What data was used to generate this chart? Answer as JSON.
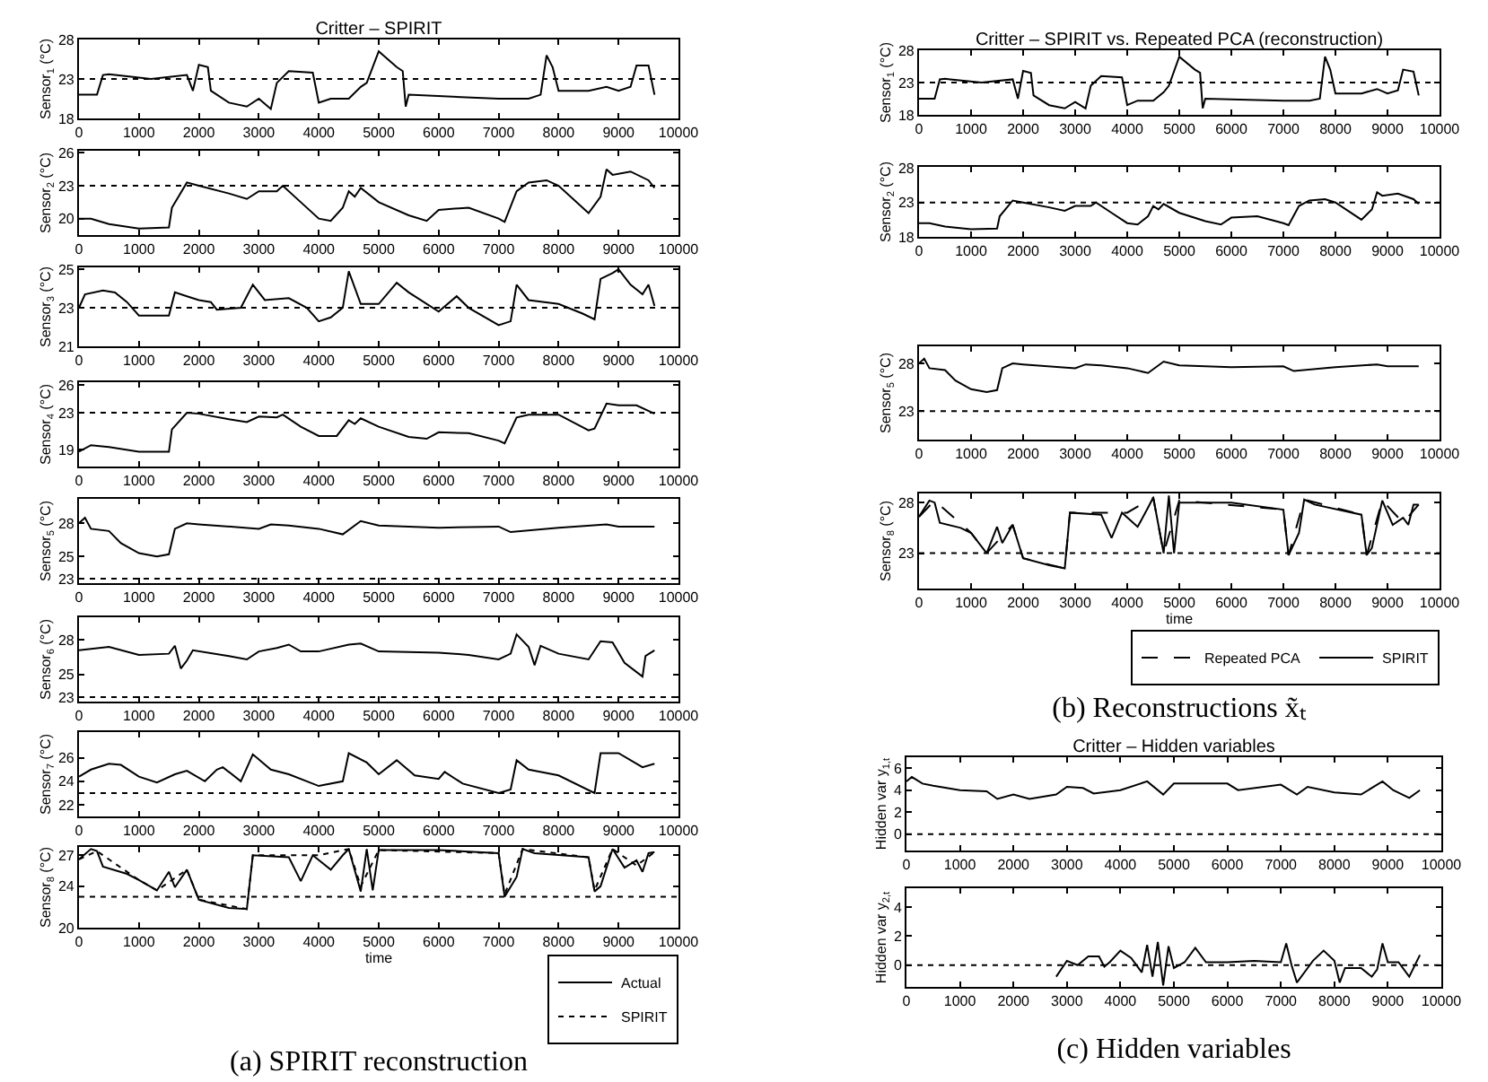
{
  "chart_data": [
    {
      "type": "line",
      "title": "Critter – SPIRIT",
      "ylabel": "Sensor$_{1}$ (°C)",
      "xlim": [
        0,
        10000
      ],
      "xticks": [
        0,
        1000,
        2000,
        3000,
        4000,
        5000,
        6000,
        7000,
        8000,
        9000,
        10000
      ],
      "ylim": [
        18,
        28
      ],
      "yticks": [
        18,
        23,
        28
      ],
      "legend": false,
      "ref_lines": [
        {
          "axis": "y",
          "value": 23,
          "color": "#000000",
          "line_style": "dotted"
        }
      ],
      "series": [
        {
          "color": "#000000",
          "line_style": "solid",
          "x": [
            0,
            300,
            400,
            500,
            600,
            1200,
            1800,
            1900,
            2000,
            2150,
            2200,
            2500,
            2800,
            3000,
            3200,
            3300,
            3500,
            3900,
            4000,
            4200,
            4500,
            4700,
            4800,
            5000,
            5300,
            5400,
            5450,
            5500,
            7000,
            7500,
            7700,
            7800,
            7900,
            8000,
            8500,
            8800,
            9000,
            9200,
            9300,
            9500,
            9600
          ],
          "values": [
            21,
            21,
            23.5,
            23.6,
            23.5,
            23,
            23.5,
            21.5,
            24.8,
            24.5,
            21.5,
            20,
            19.5,
            20.5,
            19.2,
            22.5,
            24,
            23.8,
            20,
            20.5,
            20.5,
            22,
            22.5,
            26.5,
            24.5,
            24,
            19.5,
            21,
            20.5,
            20.5,
            21,
            26,
            24.5,
            21.5,
            21.5,
            22,
            21.5,
            22,
            24.7,
            24.7,
            21
          ]
        }
      ]
    },
    {
      "type": "line",
      "ylabel": "Sensor$_{2}$ (°C)",
      "xlim": [
        0,
        10000
      ],
      "xticks": [
        0,
        1000,
        2000,
        3000,
        4000,
        5000,
        6000,
        7000,
        8000,
        9000,
        10000
      ],
      "ylim": [
        18.5,
        26.2
      ],
      "yticks": [
        20,
        23,
        26
      ],
      "legend": false,
      "ref_lines": [
        {
          "axis": "y",
          "value": 23,
          "color": "#000000",
          "line_style": "dotted"
        }
      ],
      "series": [
        {
          "color": "#000000",
          "line_style": "solid",
          "x": [
            0,
            200,
            500,
            1000,
            1500,
            1550,
            1800,
            2000,
            2500,
            2800,
            3000,
            3300,
            3400,
            3700,
            4000,
            4200,
            4400,
            4500,
            4600,
            4700,
            5000,
            5500,
            5800,
            6000,
            6500,
            7000,
            7100,
            7300,
            7500,
            7800,
            8000,
            8500,
            8700,
            8800,
            8900,
            9200,
            9500,
            9600
          ],
          "values": [
            20,
            20,
            19.5,
            19.1,
            19.2,
            21,
            23.3,
            23,
            22.3,
            21.8,
            22.5,
            22.5,
            23,
            21.5,
            20,
            19.8,
            21,
            22.5,
            22,
            22.8,
            21.5,
            20.3,
            19.8,
            20.8,
            21,
            20,
            19.7,
            22.5,
            23.3,
            23.5,
            23,
            20.5,
            22,
            24.5,
            24,
            24.3,
            23.5,
            22.8
          ]
        }
      ]
    },
    {
      "type": "line",
      "ylabel": "Sensor$_{3}$ (°C)",
      "xlim": [
        0,
        10000
      ],
      "xticks": [
        0,
        1000,
        2000,
        3000,
        4000,
        5000,
        6000,
        7000,
        8000,
        9000,
        10000
      ],
      "ylim": [
        21,
        25.1
      ],
      "yticks": [
        21,
        23,
        25
      ],
      "legend": false,
      "ref_lines": [
        {
          "axis": "y",
          "value": 23,
          "color": "#000000",
          "line_style": "dotted"
        }
      ],
      "series": [
        {
          "color": "#000000",
          "line_style": "solid",
          "x": [
            0,
            100,
            400,
            600,
            800,
            1000,
            1500,
            1600,
            1800,
            2000,
            2200,
            2300,
            2700,
            2900,
            3100,
            3500,
            3800,
            4000,
            4200,
            4400,
            4500,
            4700,
            5000,
            5300,
            5500,
            6000,
            6300,
            6500,
            7000,
            7200,
            7300,
            7500,
            8000,
            8400,
            8600,
            8700,
            8900,
            9000,
            9200,
            9400,
            9500,
            9600
          ],
          "values": [
            23,
            23.7,
            23.9,
            23.8,
            23.3,
            22.6,
            22.6,
            23.8,
            23.6,
            23.4,
            23.3,
            22.9,
            23,
            24.2,
            23.4,
            23.5,
            23,
            22.3,
            22.5,
            23,
            24.9,
            23.2,
            23.2,
            24.3,
            23.8,
            22.8,
            23.6,
            23,
            22.1,
            22.3,
            24.2,
            23.4,
            23.2,
            22.7,
            22.4,
            24.5,
            24.8,
            25,
            24.2,
            23.7,
            24.2,
            23.1
          ]
        }
      ]
    },
    {
      "type": "line",
      "ylabel": "Sensor$_{4}$ (°C)",
      "xlim": [
        0,
        10000
      ],
      "xticks": [
        0,
        1000,
        2000,
        3000,
        4000,
        5000,
        6000,
        7000,
        8000,
        9000,
        10000
      ],
      "ylim": [
        17.2,
        26.3
      ],
      "yticks": [
        19,
        23,
        26
      ],
      "legend": false,
      "ref_lines": [
        {
          "axis": "y",
          "value": 23,
          "color": "#000000",
          "line_style": "dotted"
        }
      ],
      "series": [
        {
          "color": "#000000",
          "line_style": "solid",
          "x": [
            0,
            200,
            500,
            1000,
            1500,
            1550,
            1800,
            2000,
            2500,
            2800,
            3000,
            3300,
            3400,
            3700,
            4000,
            4300,
            4500,
            4600,
            4700,
            5000,
            5500,
            5800,
            6000,
            6500,
            7000,
            7100,
            7300,
            7500,
            8000,
            8500,
            8600,
            8800,
            9000,
            9300,
            9600
          ],
          "values": [
            18.8,
            19.5,
            19.3,
            18.8,
            18.8,
            21.2,
            23,
            22.9,
            22.3,
            22,
            22.6,
            22.5,
            22.8,
            21.5,
            20.5,
            20.5,
            22.2,
            21.8,
            22.4,
            21.5,
            20.4,
            20.2,
            20.9,
            20.8,
            20,
            19.7,
            22.5,
            22.8,
            22.8,
            21.1,
            21.3,
            24,
            23.8,
            23.8,
            22.9
          ]
        }
      ]
    },
    {
      "type": "line",
      "ylabel": "Sensor$_{5}$ (°C)",
      "xlim": [
        0,
        10000
      ],
      "xticks": [
        0,
        1000,
        2000,
        3000,
        4000,
        5000,
        6000,
        7000,
        8000,
        9000,
        10000
      ],
      "ylim": [
        22.6,
        30.2
      ],
      "yticks": [
        23,
        25,
        28
      ],
      "legend": false,
      "ref_lines": [
        {
          "axis": "y",
          "value": 23,
          "color": "#000000",
          "line_style": "dotted"
        }
      ],
      "series": [
        {
          "color": "#000000",
          "line_style": "solid",
          "x": [
            0,
            100,
            200,
            500,
            700,
            1000,
            1300,
            1500,
            1600,
            1800,
            2000,
            3000,
            3200,
            3500,
            4000,
            4400,
            4700,
            5000,
            6000,
            7000,
            7200,
            8000,
            8800,
            9000,
            9600
          ],
          "values": [
            28,
            28.5,
            27.5,
            27.3,
            26.2,
            25.3,
            25,
            25.2,
            27.5,
            28,
            27.9,
            27.5,
            27.9,
            27.8,
            27.5,
            27,
            28.2,
            27.8,
            27.6,
            27.7,
            27.2,
            27.6,
            27.9,
            27.7,
            27.7
          ]
        }
      ]
    },
    {
      "type": "line",
      "ylabel": "Sensor$_{6}$ (°C)",
      "xlim": [
        0,
        10000
      ],
      "xticks": [
        0,
        1000,
        2000,
        3000,
        4000,
        5000,
        6000,
        7000,
        8000,
        9000,
        10000
      ],
      "ylim": [
        22.6,
        30
      ],
      "yticks": [
        23,
        25,
        28
      ],
      "legend": false,
      "ref_lines": [
        {
          "axis": "y",
          "value": 23,
          "color": "#000000",
          "line_style": "dotted"
        }
      ],
      "series": [
        {
          "color": "#000000",
          "line_style": "solid",
          "x": [
            0,
            500,
            1000,
            1500,
            1600,
            1700,
            1800,
            1900,
            2500,
            2800,
            3000,
            3300,
            3500,
            3700,
            4000,
            4500,
            4700,
            5000,
            6000,
            6500,
            7000,
            7200,
            7300,
            7500,
            7600,
            7700,
            8000,
            8500,
            8700,
            8900,
            9100,
            9400,
            9450,
            9600
          ],
          "values": [
            27.1,
            27.4,
            26.7,
            26.8,
            27.5,
            25.5,
            26.2,
            27.1,
            26.6,
            26.3,
            27,
            27.3,
            27.6,
            27,
            27,
            27.6,
            27.7,
            27,
            26.9,
            26.7,
            26.3,
            26.8,
            28.5,
            27.4,
            25.8,
            27.5,
            26.8,
            26.3,
            27.9,
            27.8,
            26,
            24.8,
            26.6,
            27.1
          ]
        }
      ]
    },
    {
      "type": "line",
      "ylabel": "Sensor$_{7}$ (°C)",
      "xlim": [
        0,
        10000
      ],
      "xticks": [
        0,
        1000,
        2000,
        3000,
        4000,
        5000,
        6000,
        7000,
        8000,
        9000,
        10000
      ],
      "ylim": [
        21,
        28.2
      ],
      "yticks": [
        22,
        24,
        26
      ],
      "legend": false,
      "ref_lines": [
        {
          "axis": "y",
          "value": 23,
          "color": "#000000",
          "line_style": "dotted"
        }
      ],
      "series": [
        {
          "color": "#000000",
          "line_style": "solid",
          "x": [
            0,
            200,
            500,
            700,
            1000,
            1300,
            1600,
            1800,
            2100,
            2300,
            2400,
            2700,
            2900,
            3200,
            3500,
            4000,
            4400,
            4500,
            4800,
            5000,
            5300,
            5600,
            6000,
            6100,
            6400,
            7000,
            7200,
            7300,
            7500,
            8000,
            8600,
            8700,
            9000,
            9400,
            9600
          ],
          "values": [
            24.4,
            25,
            25.5,
            25.4,
            24.4,
            23.9,
            24.6,
            24.9,
            24,
            25,
            25.2,
            24,
            26.3,
            25,
            24.6,
            23.6,
            24,
            26.4,
            25.6,
            24.6,
            25.8,
            24.5,
            24.2,
            24.8,
            23.8,
            23,
            23.3,
            25.8,
            25,
            24.5,
            23,
            26.4,
            26.4,
            25.2,
            25.5
          ]
        }
      ]
    },
    {
      "type": "line",
      "ylabel": "Sensor$_{8}$ (°C)",
      "xlabel": "time",
      "xlim": [
        0,
        10000
      ],
      "xticks": [
        0,
        1000,
        2000,
        3000,
        4000,
        5000,
        6000,
        7000,
        8000,
        9000,
        10000
      ],
      "ylim": [
        20,
        27.8
      ],
      "yticks": [
        20,
        24,
        27
      ],
      "legend": "bottom right",
      "ref_lines": [
        {
          "axis": "y",
          "value": 23,
          "color": "#000000",
          "line_style": "dotted"
        }
      ],
      "annotations": [
        "(a) SPIRIT reconstruction"
      ],
      "series": [
        {
          "name": "Actual",
          "color": "#000000",
          "line_style": "solid",
          "x": [
            0,
            200,
            300,
            400,
            800,
            1000,
            1300,
            1500,
            1600,
            1800,
            2000,
            2500,
            2800,
            2900,
            3500,
            3700,
            3900,
            4200,
            4400,
            4500,
            4700,
            4800,
            4900,
            5000,
            6000,
            7000,
            7100,
            7300,
            7400,
            7600,
            8500,
            8600,
            8700,
            8900,
            9100,
            9300,
            9400,
            9500,
            9600
          ],
          "values": [
            26.6,
            27.6,
            27.4,
            25.9,
            25.2,
            24.6,
            23.6,
            25.4,
            23.9,
            25.6,
            22.7,
            21.9,
            21.8,
            27,
            26.8,
            24.5,
            27,
            25.6,
            27,
            27.6,
            23.5,
            27.6,
            23.6,
            27.5,
            27.5,
            27.2,
            23,
            24.9,
            27.6,
            27.2,
            26.8,
            23.5,
            24,
            27.6,
            25.8,
            26.5,
            25.4,
            27.2,
            27.3
          ]
        },
        {
          "name": "SPIRIT",
          "color": "#000000",
          "line_style": "dotted",
          "x": [
            0,
            300,
            1000,
            1300,
            1800,
            2000,
            2800,
            2900,
            4000,
            4500,
            4700,
            5000,
            7000,
            7100,
            7400,
            8500,
            8600,
            8900,
            9300,
            9600
          ],
          "values": [
            26.6,
            27.4,
            24.6,
            23.6,
            25.6,
            22.7,
            21.8,
            27,
            27,
            27.6,
            24,
            27.5,
            27.2,
            23.2,
            27.6,
            26.8,
            23.6,
            27.6,
            26,
            27.3
          ]
        }
      ]
    },
    {
      "type": "line",
      "title": "Critter – SPIRIT vs. Repeated PCA (reconstruction)",
      "ylabel": "Sensor$_{1}$ (°C)",
      "xlim": [
        0,
        10000
      ],
      "xticks": [
        0,
        1000,
        2000,
        3000,
        4000,
        5000,
        6000,
        7000,
        8000,
        9000,
        10000
      ],
      "ylim": [
        18,
        28
      ],
      "yticks": [
        18,
        23,
        28
      ],
      "legend": false,
      "ref_lines": [
        {
          "axis": "y",
          "value": 23,
          "color": "#000000",
          "line_style": "dotted"
        }
      ],
      "series": [
        {
          "color": "#000000",
          "line_style": "solid",
          "x": [
            0,
            300,
            400,
            500,
            600,
            1200,
            1800,
            1900,
            2000,
            2150,
            2200,
            2500,
            2800,
            3000,
            3200,
            3300,
            3500,
            3900,
            4000,
            4200,
            4500,
            4700,
            4800,
            5000,
            5300,
            5400,
            5450,
            5500,
            7000,
            7500,
            7700,
            7800,
            7900,
            8000,
            8500,
            8800,
            9000,
            9200,
            9300,
            9500,
            9600
          ],
          "values": [
            20.5,
            20.5,
            23.5,
            23.6,
            23.5,
            23,
            23.5,
            20.5,
            24.8,
            24.5,
            21,
            19.5,
            19,
            20,
            19,
            22.5,
            24,
            23.8,
            19.5,
            20.2,
            20.2,
            21.5,
            22.5,
            27,
            25,
            24.5,
            19,
            20.5,
            20.2,
            20.2,
            20.5,
            27,
            25,
            21.3,
            21.3,
            22,
            21.3,
            21.8,
            25,
            24.7,
            21
          ]
        }
      ]
    },
    {
      "type": "line",
      "ylabel": "Sensor$_{2}$ (°C)",
      "xlim": [
        0,
        10000
      ],
      "xticks": [
        0,
        1000,
        2000,
        3000,
        4000,
        5000,
        6000,
        7000,
        8000,
        9000,
        10000
      ],
      "ylim": [
        18,
        28.2
      ],
      "yticks": [
        18,
        23,
        28
      ],
      "legend": false,
      "ref_lines": [
        {
          "axis": "y",
          "value": 23,
          "color": "#000000",
          "line_style": "dotted"
        }
      ],
      "series": [
        {
          "color": "#000000",
          "line_style": "solid",
          "x": [
            0,
            200,
            500,
            1000,
            1500,
            1550,
            1800,
            2000,
            2500,
            2800,
            3000,
            3300,
            3400,
            3700,
            4000,
            4200,
            4400,
            4500,
            4600,
            4700,
            5000,
            5500,
            5800,
            6000,
            6500,
            7000,
            7100,
            7300,
            7500,
            7800,
            8000,
            8500,
            8700,
            8800,
            8900,
            9200,
            9500,
            9600
          ],
          "values": [
            20,
            20,
            19.5,
            19.1,
            19.2,
            21,
            23.3,
            23,
            22.3,
            21.8,
            22.5,
            22.5,
            23,
            21.5,
            20,
            19.8,
            21,
            22.5,
            22,
            22.8,
            21.5,
            20.3,
            19.8,
            20.8,
            21,
            20,
            19.7,
            22.5,
            23.3,
            23.5,
            23,
            20.5,
            22,
            24.5,
            24,
            24.3,
            23.5,
            22.8
          ]
        }
      ]
    },
    {
      "type": "line",
      "ylabel": "Sensor$_{5}$ (°C)",
      "xlim": [
        0,
        10000
      ],
      "xticks": [
        0,
        1000,
        2000,
        3000,
        4000,
        5000,
        6000,
        7000,
        8000,
        9000,
        10000
      ],
      "ylim": [
        20,
        29.8
      ],
      "yticks": [
        23,
        28
      ],
      "legend": false,
      "ref_lines": [
        {
          "axis": "y",
          "value": 23,
          "color": "#000000",
          "line_style": "dotted"
        }
      ],
      "series": [
        {
          "color": "#000000",
          "line_style": "solid",
          "x": [
            0,
            100,
            200,
            500,
            700,
            1000,
            1300,
            1500,
            1600,
            1800,
            2000,
            3000,
            3200,
            3500,
            4000,
            4400,
            4700,
            5000,
            6000,
            7000,
            7200,
            8000,
            8800,
            9000,
            9600
          ],
          "values": [
            28,
            28.5,
            27.5,
            27.3,
            26.2,
            25.3,
            25,
            25.2,
            27.5,
            28,
            27.9,
            27.5,
            27.9,
            27.8,
            27.5,
            27,
            28.2,
            27.8,
            27.6,
            27.7,
            27.2,
            27.6,
            27.9,
            27.7,
            27.7
          ]
        }
      ]
    },
    {
      "type": "line",
      "ylabel": "Sensor$_{8}$ (°C)",
      "xlabel": "time",
      "xlim": [
        0,
        10000
      ],
      "xticks": [
        0,
        1000,
        2000,
        3000,
        4000,
        5000,
        6000,
        7000,
        8000,
        9000,
        10000
      ],
      "ylim": [
        19.5,
        28.9
      ],
      "yticks": [
        23,
        28
      ],
      "legend": "bottom right",
      "ref_lines": [
        {
          "axis": "y",
          "value": 23,
          "color": "#000000",
          "line_style": "dotted"
        }
      ],
      "annotations": [
        "(b) Reconstructions x̃ₜ"
      ],
      "series": [
        {
          "name": "Repeated PCA",
          "color": "#000000",
          "line_style": "dashed",
          "x": [
            0,
            300,
            1000,
            1300,
            1800,
            2000,
            2800,
            2900,
            4000,
            4500,
            4700,
            5000,
            7000,
            7100,
            7400,
            8500,
            8600,
            8900,
            9300,
            9600
          ],
          "values": [
            26.6,
            28.2,
            25,
            23,
            25.8,
            22.5,
            21.5,
            27,
            27,
            28.5,
            23,
            28.2,
            27.3,
            22.8,
            28.3,
            26.8,
            22.8,
            28.2,
            26,
            27.8
          ]
        },
        {
          "name": "SPIRIT",
          "color": "#000000",
          "line_style": "solid",
          "x": [
            0,
            200,
            300,
            400,
            800,
            1000,
            1300,
            1500,
            1600,
            1800,
            2000,
            2500,
            2800,
            2900,
            3500,
            3700,
            3900,
            4200,
            4400,
            4500,
            4700,
            4800,
            4900,
            5000,
            6000,
            7000,
            7100,
            7300,
            7400,
            7600,
            8500,
            8600,
            8700,
            8900,
            9100,
            9300,
            9400,
            9500,
            9600
          ],
          "values": [
            26.6,
            28.2,
            28,
            26,
            25.5,
            25,
            23,
            25.6,
            24,
            25.8,
            22.5,
            21.8,
            21.5,
            27,
            26.8,
            24.5,
            27,
            25.6,
            27.5,
            28.5,
            23,
            28.7,
            23,
            28,
            28,
            27.3,
            22.8,
            25,
            28.3,
            27.8,
            26.8,
            22.8,
            23.5,
            28.2,
            25.8,
            26.5,
            25.8,
            27.8,
            27.8
          ]
        }
      ]
    },
    {
      "type": "line",
      "title": "Critter – Hidden variables",
      "ylabel": "Hidden var y$_{1,t}$",
      "xlim": [
        0,
        10000
      ],
      "xticks": [
        0,
        1000,
        2000,
        3000,
        4000,
        5000,
        6000,
        7000,
        8000,
        9000,
        10000
      ],
      "ylim": [
        -1.5,
        7
      ],
      "yticks": [
        0,
        2,
        4,
        6
      ],
      "legend": false,
      "ref_lines": [
        {
          "axis": "y",
          "value": 0,
          "color": "#000000",
          "line_style": "dotted"
        }
      ],
      "series": [
        {
          "color": "#000000",
          "line_style": "solid",
          "x": [
            0,
            100,
            300,
            500,
            1000,
            1500,
            1700,
            2000,
            2300,
            2800,
            3000,
            3300,
            3500,
            4000,
            4500,
            4800,
            5000,
            6000,
            6200,
            7000,
            7300,
            7500,
            8000,
            8500,
            8900,
            9100,
            9400,
            9600
          ],
          "values": [
            4.8,
            5.2,
            4.6,
            4.4,
            4,
            3.9,
            3.2,
            3.6,
            3.2,
            3.6,
            4.3,
            4.2,
            3.7,
            4,
            4.8,
            3.6,
            4.6,
            4.6,
            4,
            4.5,
            3.6,
            4.3,
            3.8,
            3.6,
            4.8,
            4,
            3.3,
            4
          ]
        }
      ]
    },
    {
      "type": "line",
      "ylabel": "Hidden var y$_{2,t}$",
      "xlim": [
        0,
        10000
      ],
      "xticks": [
        0,
        1000,
        2000,
        3000,
        4000,
        5000,
        6000,
        7000,
        8000,
        9000,
        10000
      ],
      "ylim": [
        -1.5,
        5.3
      ],
      "yticks": [
        0,
        2,
        4
      ],
      "legend": false,
      "ref_lines": [
        {
          "axis": "y",
          "value": 0,
          "color": "#000000",
          "line_style": "dotted"
        }
      ],
      "annotations": [
        "(c) Hidden variables"
      ],
      "series": [
        {
          "color": "#000000",
          "line_style": "solid",
          "x": [
            2800,
            3000,
            3200,
            3400,
            3600,
            3700,
            3800,
            4000,
            4200,
            4400,
            4500,
            4600,
            4700,
            4800,
            4900,
            5000,
            5200,
            5400,
            5600,
            6000,
            6500,
            7000,
            7100,
            7200,
            7300,
            7500,
            7600,
            7800,
            8000,
            8100,
            8200,
            8500,
            8700,
            8800,
            8900,
            9000,
            9200,
            9400,
            9600
          ],
          "values": [
            -0.8,
            0.3,
            0,
            0.6,
            0.6,
            -0.1,
            0.2,
            1,
            0.5,
            -0.5,
            1.4,
            -0.8,
            1.6,
            -1.4,
            1.3,
            -0.2,
            0.2,
            1.2,
            0.2,
            0.2,
            0.3,
            0.2,
            1.5,
            0,
            -1.2,
            -0.2,
            0.3,
            1,
            0.3,
            -1.2,
            -0.2,
            -0.2,
            -0.8,
            -0.3,
            1.5,
            0.2,
            0.2,
            -0.8,
            0.7
          ]
        }
      ]
    }
  ]
}
